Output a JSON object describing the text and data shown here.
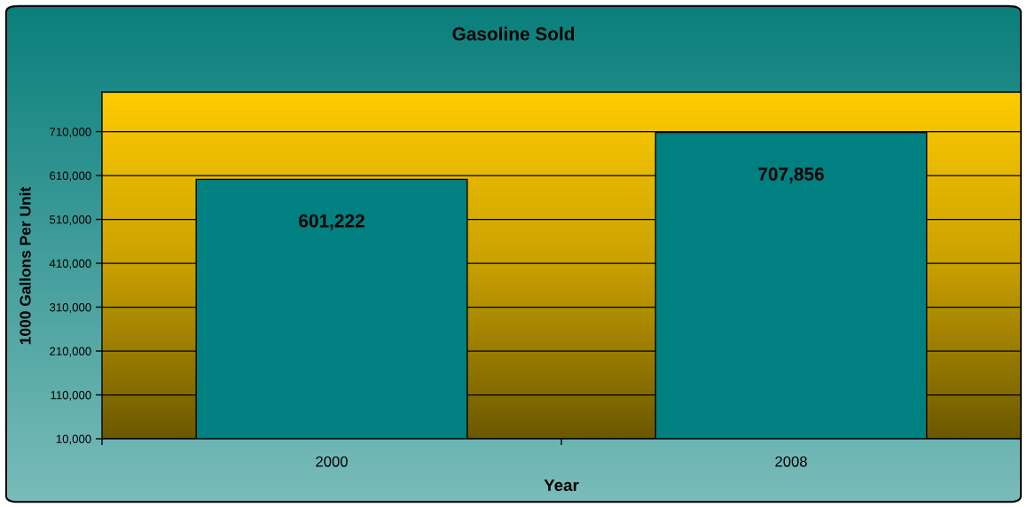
{
  "chart_data": {
    "type": "bar",
    "title": "Gasoline Sold",
    "xlabel": "Year",
    "ylabel": "1000 Gallons Per Unit",
    "categories": [
      "2000",
      "2008"
    ],
    "series": [
      {
        "color": "#008080",
        "values": [
          601222,
          707856
        ],
        "value_labels": [
          "601,222",
          "707,856"
        ]
      }
    ],
    "ylim": [
      10000,
      800000
    ],
    "yticks": [
      {
        "value": 10000,
        "label": "10,000"
      },
      {
        "value": 110000,
        "label": "110,000"
      },
      {
        "value": 210000,
        "label": "210,000"
      },
      {
        "value": 310000,
        "label": "310,000"
      },
      {
        "value": 410000,
        "label": "410,000"
      },
      {
        "value": 510000,
        "label": "510,000"
      },
      {
        "value": 610000,
        "label": "610,000"
      },
      {
        "value": 710000,
        "label": "710,000"
      }
    ],
    "grid": "y"
  }
}
